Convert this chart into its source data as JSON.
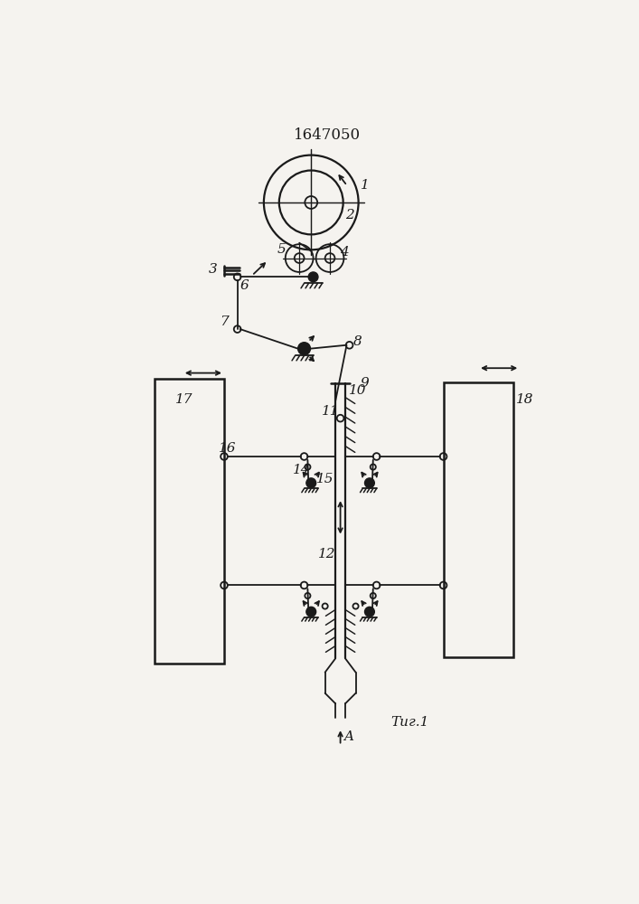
{
  "title": "1647050",
  "fig_label": "Τиг.1",
  "bg_color": "#f5f3ef",
  "line_color": "#1a1a1a",
  "figsize": [
    7.07,
    10.0
  ],
  "dpi": 100
}
